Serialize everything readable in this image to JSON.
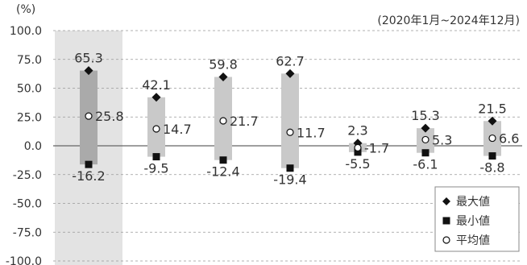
{
  "chart_data": {
    "type": "range-dot",
    "y_unit_label": "(%)",
    "period_label": "(2020年1月~2024年12月)",
    "y_ticks": [
      100.0,
      75.0,
      50.0,
      25.0,
      0.0,
      -25.0,
      -50.0,
      -75.0,
      -100.0
    ],
    "ylim": [
      -100,
      100
    ],
    "grid": "dotted horizontal",
    "legend": {
      "placement": "bottom-right",
      "entries": [
        {
          "symbol": "diamond",
          "label": "最大値"
        },
        {
          "symbol": "square",
          "label": "最小値"
        },
        {
          "symbol": "circle",
          "label": "平均値"
        }
      ]
    },
    "groups": [
      {
        "max": 65.3,
        "min": -16.2,
        "avg": 25.8,
        "max_label": "65.3",
        "min_label": "-16.2",
        "avg_label": "25.8",
        "highlighted": true
      },
      {
        "max": 42.1,
        "min": -9.5,
        "avg": 14.7,
        "max_label": "42.1",
        "min_label": "-9.5",
        "avg_label": "14.7",
        "highlighted": false
      },
      {
        "max": 59.8,
        "min": -12.4,
        "avg": 21.7,
        "max_label": "59.8",
        "min_label": "-12.4",
        "avg_label": "21.7",
        "highlighted": false
      },
      {
        "max": 62.7,
        "min": -19.4,
        "avg": 11.7,
        "max_label": "62.7",
        "min_label": "-19.4",
        "avg_label": "11.7",
        "highlighted": false
      },
      {
        "max": 2.3,
        "min": -5.5,
        "avg": -1.7,
        "max_label": "2.3",
        "min_label": "-5.5",
        "avg_label": "-1.7",
        "highlighted": false
      },
      {
        "max": 15.3,
        "min": -6.1,
        "avg": 5.3,
        "max_label": "15.3",
        "min_label": "-6.1",
        "avg_label": "5.3",
        "highlighted": false
      },
      {
        "max": 21.5,
        "min": -8.8,
        "avg": 6.6,
        "max_label": "21.5",
        "min_label": "-8.8",
        "avg_label": "6.6",
        "highlighted": false
      }
    ]
  },
  "colors": {
    "range_bar": "#c9c9c9",
    "range_bar_highlighted": "#aaaaaa",
    "highlight_column": "#e3e3e3",
    "marker": "#111111",
    "axis_text": "#333333",
    "grid": "#999999"
  }
}
